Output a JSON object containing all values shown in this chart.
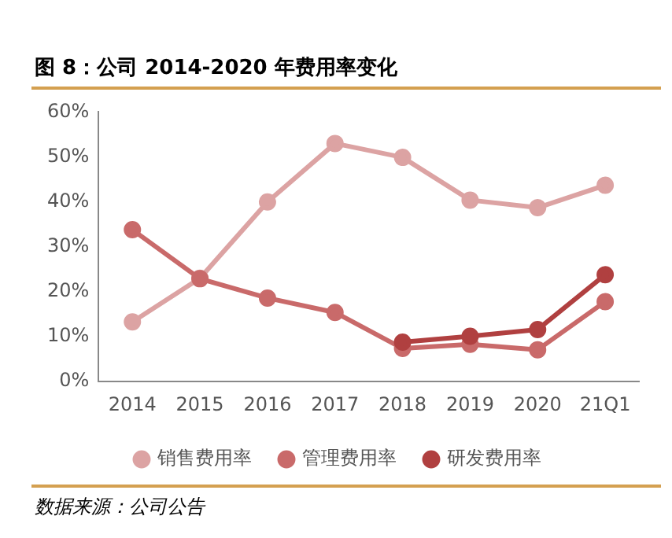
{
  "chart_data": {
    "type": "line",
    "title": "图 8：公司 2014-2020 年费用率变化",
    "categories": [
      "2014",
      "2015",
      "2016",
      "2017",
      "2018",
      "2019",
      "2020",
      "21Q1"
    ],
    "series": [
      {
        "name": "销售费用率",
        "color": "#dca3a3",
        "values": [
          13.3,
          23,
          40,
          53,
          49.9,
          40.4,
          38.7,
          43.7
        ]
      },
      {
        "name": "管理费用率",
        "color": "#c96a6a",
        "values": [
          33.8,
          22.9,
          18.6,
          15.4,
          7.4,
          8.3,
          7.1,
          17.8
        ]
      },
      {
        "name": "研发费用率",
        "color": "#b04040",
        "values": [
          null,
          null,
          null,
          null,
          8.8,
          10.1,
          11.6,
          23.8
        ]
      }
    ],
    "ylim": [
      0,
      60
    ],
    "yticks": [
      {
        "value": 0,
        "label": "0%"
      },
      {
        "value": 10,
        "label": "10%"
      },
      {
        "value": 20,
        "label": "20%"
      },
      {
        "value": 30,
        "label": "30%"
      },
      {
        "value": 40,
        "label": "40%"
      },
      {
        "value": 50,
        "label": "50%"
      },
      {
        "value": 60,
        "label": "60%"
      }
    ],
    "grid": false,
    "legend": "bottom",
    "marker": "circle",
    "line_style": "solid",
    "annotations": [
      "数据来源：公司公告"
    ]
  }
}
